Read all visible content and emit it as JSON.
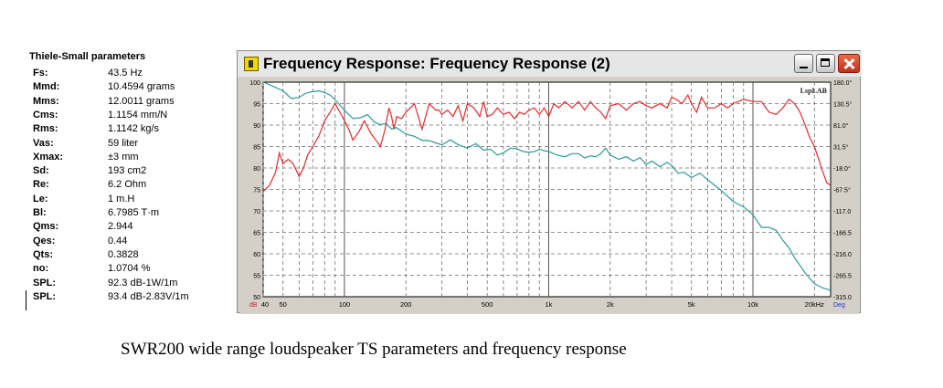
{
  "ts": {
    "title": "Thiele-Small parameters",
    "params": [
      {
        "key": "Fs:",
        "value": "43.5 Hz"
      },
      {
        "key": "Mmd:",
        "value": "10.4594 grams"
      },
      {
        "key": "Mms:",
        "value": "12.0011 grams"
      },
      {
        "key": "Cms:",
        "value": "1.1154 mm/N"
      },
      {
        "key": "Rms:",
        "value": "1.1142 kg/s"
      },
      {
        "key": "Vas:",
        "value": "59 liter"
      },
      {
        "key": "Xmax:",
        "value": "±3 mm"
      },
      {
        "key": "Sd:",
        "value": "193 cm2"
      },
      {
        "key": "Re:",
        "value": "6.2 Ohm"
      },
      {
        "key": "Le:",
        "value": "1 m.H"
      },
      {
        "key": "Bl:",
        "value": "6.7985 T·m"
      },
      {
        "key": "Qms:",
        "value": "2.944"
      },
      {
        "key": "Qes:",
        "value": "0.44"
      },
      {
        "key": "Qts:",
        "value": "0.3828"
      },
      {
        "key": "no:",
        "value": "1.0704 %"
      },
      {
        "key": "SPL:",
        "value": "92.3 dB-1W/1m"
      },
      {
        "key": "SPL:",
        "value": "93.4 dB-2.83V/1m"
      }
    ]
  },
  "window": {
    "title": "Frequency Response: Frequency Response (2)"
  },
  "caption": "SWR200 wide range loudspeaker  TS parameters and frequency response",
  "colors": {
    "spl": "#e8282a",
    "phase": "#2a9a9e",
    "grid": "#6f6f6f",
    "background": "#ffffff"
  },
  "chart_data": {
    "type": "line",
    "brand": "LspLAB",
    "x_scale": "log",
    "xlim": [
      40,
      24000
    ],
    "ylim_left": [
      50,
      100
    ],
    "ylim_right": [
      -315,
      180
    ],
    "grid": true,
    "x_ticks": [
      {
        "value": 40,
        "label": "40"
      },
      {
        "value": 50,
        "label": "50"
      },
      {
        "value": 100,
        "label": "100"
      },
      {
        "value": 200,
        "label": "200"
      },
      {
        "value": 500,
        "label": "500"
      },
      {
        "value": 1000,
        "label": "1k"
      },
      {
        "value": 2000,
        "label": "2k"
      },
      {
        "value": 5000,
        "label": "5k"
      },
      {
        "value": 10000,
        "label": "10k"
      },
      {
        "value": 20000,
        "label": "20kHz"
      }
    ],
    "x_unit_left": "dB",
    "x_unit_right": "Deg",
    "y_left_ticks": [
      "100",
      "95",
      "90",
      "85",
      "80",
      "75",
      "70",
      "65",
      "60",
      "55",
      "50"
    ],
    "y_right_ticks": [
      "180.0°",
      "130.5°",
      "81.0°",
      "31.5°",
      "-18.0°",
      "-67.5°",
      "-117.0",
      "-166.5",
      "-216.0",
      "-265.5",
      "-315.0"
    ],
    "series": [
      {
        "axis": "left",
        "x": [
          40,
          43,
          46,
          48,
          50,
          53,
          56,
          60,
          63,
          66,
          70,
          75,
          80,
          85,
          90,
          95,
          100,
          105,
          110,
          118,
          125,
          135,
          145,
          150,
          158,
          165,
          170,
          175,
          180,
          190,
          200,
          210,
          220,
          240,
          260,
          280,
          290,
          300,
          320,
          340,
          360,
          380,
          400,
          430,
          460,
          480,
          500,
          530,
          560,
          600,
          640,
          680,
          720,
          760,
          800,
          850,
          900,
          950,
          1000,
          1060,
          1120,
          1200,
          1300,
          1400,
          1500,
          1600,
          1700,
          1800,
          1900,
          2000,
          2200,
          2400,
          2600,
          2800,
          3000,
          3200,
          3500,
          3800,
          4000,
          4200,
          4500,
          4800,
          5000,
          5300,
          5600,
          6000,
          6500,
          7000,
          7500,
          8000,
          8500,
          9000,
          10000,
          11000,
          12000,
          13000,
          14000,
          15000,
          16000,
          17000,
          18000,
          19000,
          20000,
          21000,
          22000,
          23000,
          24000
        ],
        "y": [
          74.5,
          76,
          79,
          83.5,
          81,
          82,
          81,
          78,
          80,
          83,
          85,
          87.5,
          91,
          93,
          95,
          93,
          91,
          89,
          86.5,
          88.5,
          91,
          88,
          86,
          85,
          89,
          94,
          92,
          89,
          92,
          91.5,
          93,
          94,
          95,
          89,
          95,
          93.5,
          93.5,
          92.5,
          93.5,
          92,
          94.5,
          91,
          95,
          94,
          92,
          95.5,
          92,
          92.5,
          94,
          92.5,
          93,
          91.5,
          93,
          92.5,
          93.5,
          94,
          92.5,
          94,
          92,
          95,
          94,
          95.5,
          94,
          95.5,
          93.5,
          95.5,
          94,
          93,
          91.5,
          94.5,
          95,
          93.5,
          95,
          95.5,
          94.5,
          94,
          95,
          94,
          96.5,
          96,
          95,
          97,
          95,
          93,
          96.5,
          94,
          94,
          95,
          94,
          95,
          95.5,
          96,
          95.5,
          95.5,
          93,
          92.5,
          94,
          96,
          95,
          93,
          90,
          87,
          85,
          82,
          79,
          76.5,
          76
        ]
      },
      {
        "axis": "right",
        "x": [
          40,
          45,
          50,
          55,
          60,
          65,
          70,
          75,
          80,
          85,
          90,
          100,
          110,
          120,
          130,
          140,
          150,
          160,
          170,
          180,
          200,
          220,
          240,
          260,
          280,
          300,
          330,
          360,
          400,
          440,
          480,
          520,
          560,
          600,
          650,
          700,
          750,
          800,
          850,
          900,
          950,
          1000,
          1100,
          1200,
          1300,
          1400,
          1500,
          1600,
          1700,
          1800,
          1900,
          2000,
          2200,
          2400,
          2600,
          2800,
          3000,
          3200,
          3500,
          3800,
          4000,
          4300,
          4600,
          5000,
          5500,
          6000,
          6500,
          7000,
          8000,
          9000,
          10000,
          11000,
          12000,
          13000,
          14000,
          15000,
          16000,
          18000,
          20000,
          22000,
          24000
        ],
        "y": [
          180,
          170,
          160,
          142,
          145,
          155,
          158,
          160,
          156,
          150,
          140,
          115,
          96,
          98,
          105,
          88,
          82,
          85,
          72,
          75,
          60,
          55,
          46,
          45,
          40,
          35,
          47,
          36,
          28,
          38,
          23,
          25,
          12,
          17,
          28,
          26,
          20,
          18,
          20,
          25,
          22,
          20,
          12,
          8,
          15,
          15,
          5,
          10,
          8,
          15,
          28,
          12,
          2,
          8,
          -2,
          6,
          -10,
          -2,
          -15,
          -5,
          -12,
          -30,
          -28,
          -40,
          -30,
          -45,
          -58,
          -70,
          -95,
          -108,
          -126,
          -155,
          -155,
          -162,
          -185,
          -202,
          -225,
          -260,
          -285,
          -295,
          -300
        ]
      }
    ]
  }
}
